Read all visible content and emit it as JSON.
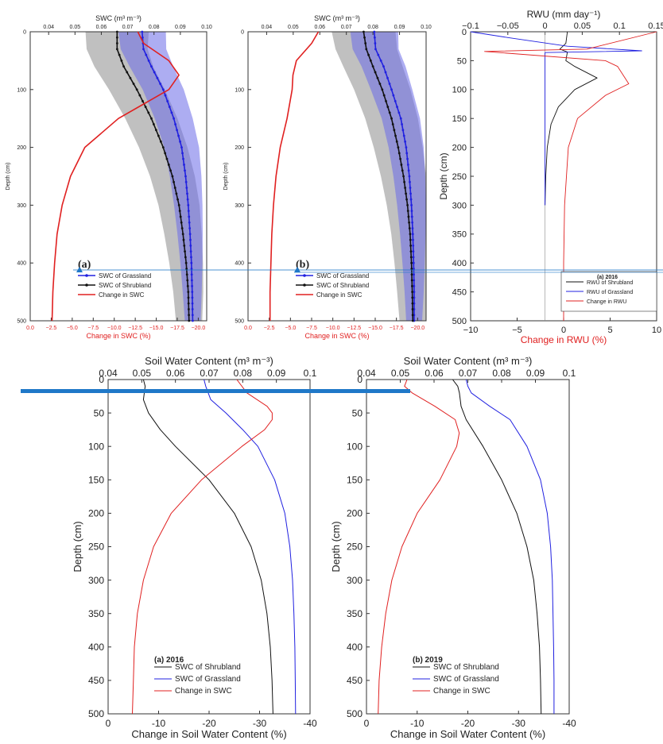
{
  "colors": {
    "grassland": "#2020e0",
    "shrubland": "#111111",
    "change": "#e02020",
    "gray_band": "#8c8c8c",
    "blue_band": "#6a6ae8",
    "ref_line": "#1f78c8"
  },
  "chart_data": [
    {
      "id": "top-a",
      "type": "line",
      "panel_label": "(a)",
      "top_axis_label": "SWC (m³ m⁻³)",
      "bottom_axis_label": "Change in SWC (%)",
      "ylabel": "Depth (cm)",
      "top_ticks": [
        "0.04",
        "0.05",
        "0.06",
        "0.07",
        "0.08",
        "0.09",
        "0.10"
      ],
      "bottom_ticks": [
        "0.0",
        "−2.5",
        "−5.0",
        "−7.5",
        "−10.0",
        "−12.5",
        "−15.0",
        "−17.5",
        "−20.0"
      ],
      "y_ticks": [
        "0",
        "100",
        "200",
        "300",
        "400",
        "500"
      ],
      "top_range": [
        0.033,
        0.1
      ],
      "bottom_range": [
        0,
        -21
      ],
      "ylim": [
        0,
        500
      ],
      "legend": [
        "SWC of Grassland",
        "SWC of Shrubland",
        "Change in SWC"
      ],
      "series": [
        {
          "name": "SWC of Grassland",
          "axis": "top",
          "depth": [
            0,
            30,
            60,
            100,
            150,
            200,
            250,
            300,
            350,
            400,
            450,
            500
          ],
          "values": [
            0.0755,
            0.076,
            0.079,
            0.0835,
            0.0875,
            0.0905,
            0.092,
            0.093,
            0.0937,
            0.0942,
            0.0945,
            0.0947
          ]
        },
        {
          "name": "SWC of Shrubland",
          "axis": "top",
          "depth": [
            0,
            30,
            60,
            100,
            150,
            200,
            250,
            300,
            350,
            400,
            450,
            500
          ],
          "values": [
            0.066,
            0.066,
            0.0685,
            0.0735,
            0.079,
            0.0835,
            0.087,
            0.0895,
            0.091,
            0.0922,
            0.093,
            0.0933
          ]
        },
        {
          "name": "Change in SWC",
          "axis": "bottom",
          "depth": [
            0,
            20,
            50,
            75,
            100,
            125,
            150,
            200,
            250,
            300,
            350,
            400,
            450,
            500
          ],
          "values": [
            -12.8,
            -13.5,
            -16.5,
            -17.7,
            -16.5,
            -13.5,
            -10.5,
            -6.5,
            -4.8,
            -3.8,
            -3.2,
            -2.9,
            -2.7,
            -2.6
          ]
        }
      ]
    },
    {
      "id": "top-b",
      "type": "line",
      "panel_label": "(b)",
      "top_axis_label": "SWC (m³ m⁻³)",
      "bottom_axis_label": "Change in SWC (%)",
      "ylabel": "Depth (cm)",
      "top_ticks": [
        "0.04",
        "0.05",
        "0.06",
        "0.07",
        "0.08",
        "0.09",
        "0.10"
      ],
      "bottom_ticks": [
        "0.0",
        "−2.5",
        "−5.0",
        "−7.5",
        "−10.0",
        "−12.5",
        "−15.0",
        "−17.5",
        "−20.0"
      ],
      "y_ticks": [
        "0",
        "100",
        "200",
        "300",
        "400",
        "500"
      ],
      "top_range": [
        0.033,
        0.1
      ],
      "bottom_range": [
        0,
        -21
      ],
      "ylim": [
        0,
        500
      ],
      "legend": [
        "SWC of Grassland",
        "SWC of Shrubland",
        "Change in SWC"
      ],
      "series": [
        {
          "name": "SWC of Grassland",
          "axis": "top",
          "depth": [
            0,
            30,
            60,
            100,
            150,
            200,
            250,
            300,
            350,
            400,
            450,
            500
          ],
          "values": [
            0.0805,
            0.081,
            0.084,
            0.087,
            0.0905,
            0.0925,
            0.0937,
            0.0945,
            0.095,
            0.0953,
            0.0955,
            0.0955
          ]
        },
        {
          "name": "SWC of Shrubland",
          "axis": "top",
          "depth": [
            0,
            30,
            60,
            100,
            150,
            200,
            250,
            300,
            350,
            400,
            450,
            500
          ],
          "values": [
            0.0765,
            0.0775,
            0.08,
            0.0835,
            0.087,
            0.0895,
            0.0915,
            0.093,
            0.094,
            0.0945,
            0.0948,
            0.095
          ]
        },
        {
          "name": "Change in SWC",
          "axis": "bottom",
          "depth": [
            0,
            20,
            50,
            75,
            100,
            150,
            200,
            250,
            300,
            350,
            400,
            450,
            500
          ],
          "values": [
            -8.3,
            -7.5,
            -5.7,
            -5.3,
            -5.2,
            -4.6,
            -3.8,
            -3.3,
            -3.0,
            -2.8,
            -2.7,
            -2.6,
            -2.6
          ]
        }
      ]
    },
    {
      "id": "top-c",
      "type": "line",
      "top_axis_label": "RWU (mm day⁻¹)",
      "bottom_axis_label": "Change in RWU (%)",
      "ylabel": "Depth (cm)",
      "top_ticks": [
        "−0.1",
        "−0.05",
        "0",
        "0.05",
        "0.1",
        "0.15"
      ],
      "bottom_ticks": [
        "−10",
        "−5",
        "0",
        "5",
        "10"
      ],
      "y_ticks": [
        "0",
        "50",
        "100",
        "150",
        "200",
        "250",
        "300",
        "350",
        "400",
        "450",
        "500"
      ],
      "top_range": [
        -0.1,
        0.15
      ],
      "bottom_range": [
        -10,
        10
      ],
      "ylim": [
        0,
        500
      ],
      "legend_title": "(a) 2016",
      "legend": [
        "RWU of Shrubland",
        "RWU of Grassland",
        "Change in RWU"
      ],
      "series": [
        {
          "name": "RWU of Shrubland",
          "axis": "top",
          "depth": [
            0,
            20,
            30,
            35,
            50,
            60,
            80,
            100,
            130,
            160,
            200,
            250,
            300
          ],
          "values": [
            0.03,
            0.028,
            0.02,
            0.03,
            0.028,
            0.04,
            0.07,
            0.04,
            0.018,
            0.008,
            0.003,
            0.001,
            0.0
          ]
        },
        {
          "name": "RWU of Grassland",
          "axis": "top",
          "depth": [
            0,
            10,
            25,
            33,
            36,
            300
          ],
          "values": [
            -0.1,
            -0.05,
            0.03,
            0.13,
            0.0,
            0.0
          ]
        },
        {
          "name": "Change in RWU",
          "axis": "bottom",
          "depth": [
            0,
            30,
            34,
            50,
            60,
            90,
            110,
            150,
            200,
            300,
            400,
            500
          ],
          "values": [
            10,
            2.5,
            -8.5,
            4.5,
            5.8,
            7,
            4.5,
            1.5,
            0.5,
            0.1,
            0.0,
            0.0
          ]
        }
      ]
    },
    {
      "id": "bottom-a",
      "type": "line",
      "title": "(a) 2016",
      "top_axis_label": "Soil Water Content (m³ m⁻³)",
      "bottom_axis_label": "Change in Soil Water Content (%)",
      "ylabel": "Depth (cm)",
      "top_ticks": [
        "0.04",
        "0.05",
        "0.06",
        "0.07",
        "0.08",
        "0.09",
        "0.1"
      ],
      "bottom_ticks": [
        "0",
        "-10",
        "-20",
        "-30",
        "-40"
      ],
      "y_ticks": [
        "0",
        "50",
        "100",
        "150",
        "200",
        "250",
        "300",
        "350",
        "400",
        "450",
        "500"
      ],
      "top_range": [
        0.04,
        0.1
      ],
      "bottom_range": [
        0,
        -40
      ],
      "ylim": [
        0,
        500
      ],
      "legend": [
        "SWC of Shrubland",
        "SWC of Grassland",
        "Change in SWC"
      ],
      "series": [
        {
          "name": "SWC of Shrubland",
          "axis": "top",
          "depth": [
            0,
            10,
            30,
            50,
            75,
            100,
            150,
            200,
            250,
            300,
            350,
            400,
            450,
            500
          ],
          "values": [
            0.0505,
            0.051,
            0.0505,
            0.052,
            0.0555,
            0.06,
            0.07,
            0.0775,
            0.0825,
            0.0855,
            0.0872,
            0.0882,
            0.0887,
            0.089
          ]
        },
        {
          "name": "SWC of Grassland",
          "axis": "top",
          "depth": [
            0,
            10,
            30,
            50,
            75,
            100,
            150,
            200,
            250,
            300,
            350,
            400,
            450,
            500
          ],
          "values": [
            0.0685,
            0.069,
            0.0705,
            0.075,
            0.08,
            0.0845,
            0.0895,
            0.0925,
            0.094,
            0.0948,
            0.0952,
            0.0955,
            0.0956,
            0.0957
          ]
        },
        {
          "name": "Change in SWC",
          "axis": "bottom",
          "depth": [
            0,
            20,
            40,
            50,
            60,
            75,
            100,
            150,
            200,
            250,
            300,
            350,
            400,
            450,
            500
          ],
          "values": [
            -25.5,
            -27.5,
            -31.5,
            -32.5,
            -32.5,
            -31,
            -26.5,
            -18.5,
            -12.5,
            -9,
            -7,
            -5.8,
            -5.2,
            -5,
            -4.8
          ]
        }
      ]
    },
    {
      "id": "bottom-b",
      "type": "line",
      "title": "(b) 2019",
      "top_axis_label": "Soil Water Content (m³ m⁻³)",
      "bottom_axis_label": "Change in Soil Water Content (%)",
      "ylabel": "Depth (cm)",
      "top_ticks": [
        "0.04",
        "0.05",
        "0.06",
        "0.07",
        "0.08",
        "0.09",
        "0.1"
      ],
      "bottom_ticks": [
        "0",
        "-10",
        "-20",
        "-30",
        "-40"
      ],
      "y_ticks": [
        "0",
        "50",
        "100",
        "150",
        "200",
        "250",
        "300",
        "350",
        "400",
        "450",
        "500"
      ],
      "top_range": [
        0.04,
        0.1
      ],
      "bottom_range": [
        0,
        -40
      ],
      "ylim": [
        0,
        500
      ],
      "legend": [
        "SWC of Shrubland",
        "SWC of Grassland",
        "Change in SWC"
      ],
      "series": [
        {
          "name": "SWC of Shrubland",
          "axis": "top",
          "depth": [
            0,
            10,
            20,
            40,
            60,
            100,
            150,
            200,
            250,
            300,
            350,
            400,
            450,
            500
          ],
          "values": [
            0.0655,
            0.067,
            0.0675,
            0.068,
            0.0695,
            0.0745,
            0.08,
            0.0845,
            0.0875,
            0.0895,
            0.0905,
            0.0912,
            0.0915,
            0.0917
          ]
        },
        {
          "name": "SWC of Grassland",
          "axis": "top",
          "depth": [
            0,
            10,
            20,
            40,
            60,
            100,
            150,
            200,
            250,
            300,
            350,
            400,
            450,
            500
          ],
          "values": [
            0.0695,
            0.07,
            0.071,
            0.0765,
            0.0825,
            0.0875,
            0.0915,
            0.0935,
            0.0945,
            0.095,
            0.0952,
            0.0954,
            0.0955,
            0.0955
          ]
        },
        {
          "name": "Change in SWC",
          "axis": "bottom",
          "depth": [
            0,
            10,
            20,
            40,
            60,
            80,
            100,
            150,
            200,
            250,
            300,
            350,
            400,
            450,
            500
          ],
          "values": [
            -8,
            -7.5,
            -9,
            -13.5,
            -17.5,
            -18.3,
            -17.8,
            -14.5,
            -10,
            -7,
            -5,
            -3.8,
            -3.0,
            -2.5,
            -2.3
          ]
        }
      ]
    }
  ]
}
